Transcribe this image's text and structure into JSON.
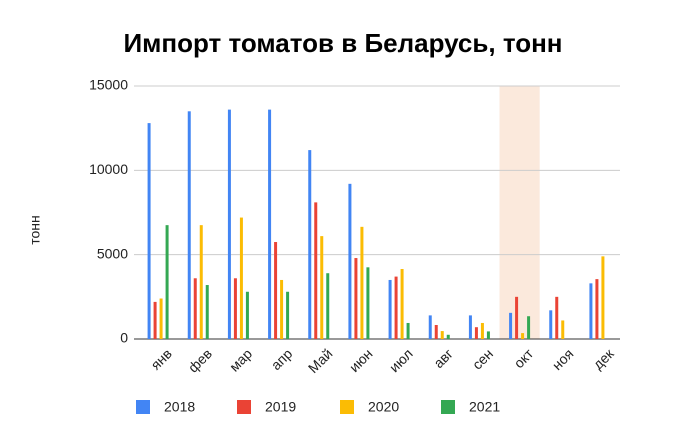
{
  "chart_data": {
    "type": "bar",
    "title": "Импорт томатов в Беларусь, тонн",
    "y_label": "тонн",
    "categories": [
      "янв",
      "фев",
      "мар",
      "апр",
      "Май",
      "июн",
      "июл",
      "авг",
      "сен",
      "окт",
      "ноя",
      "дек"
    ],
    "series": [
      {
        "name": "2018",
        "color": "#4285f4",
        "values": [
          12800,
          13500,
          13600,
          13600,
          11200,
          9200,
          3500,
          1400,
          1400,
          1550,
          1700,
          3300
        ]
      },
      {
        "name": "2019",
        "color": "#ea4335",
        "values": [
          2200,
          3600,
          3600,
          5750,
          8100,
          4800,
          3700,
          830,
          700,
          2500,
          2500,
          3550
        ]
      },
      {
        "name": "2020",
        "color": "#fbbc04",
        "values": [
          2400,
          6750,
          7200,
          3500,
          6100,
          6650,
          4150,
          470,
          950,
          350,
          1100,
          4900
        ]
      },
      {
        "name": "2021",
        "color": "#34a853",
        "values": [
          6750,
          3200,
          2800,
          2800,
          3900,
          4250,
          950,
          250,
          450,
          1350,
          null,
          null
        ]
      }
    ],
    "ylim": [
      0,
      15000
    ],
    "yticks": [
      0,
      5000,
      10000,
      15000
    ],
    "grid": true,
    "highlight_index": 9,
    "legend": "bottom"
  }
}
